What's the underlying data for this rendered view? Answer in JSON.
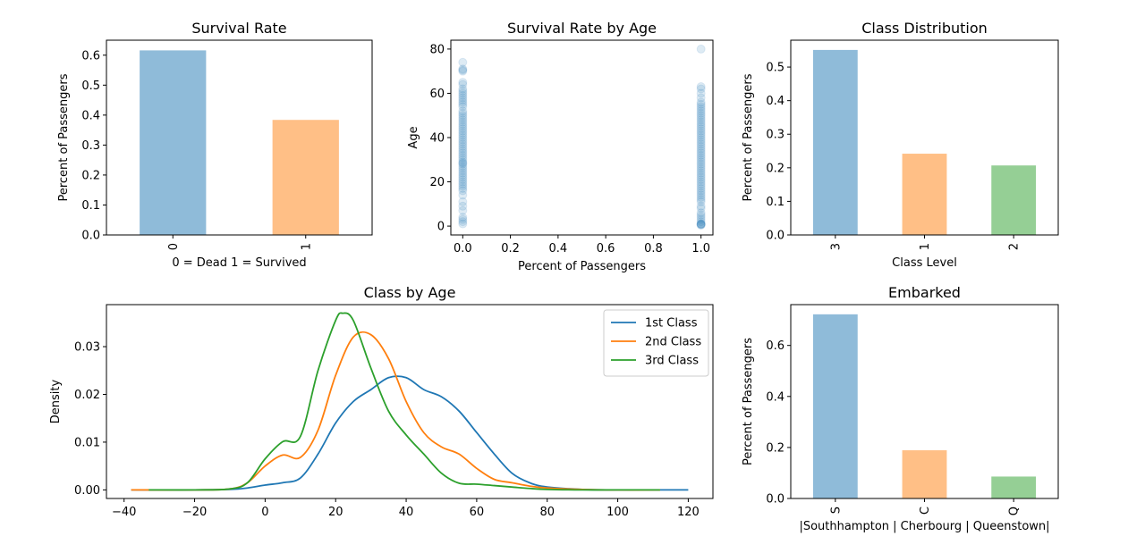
{
  "chart_data": [
    {
      "id": "survival",
      "type": "bar",
      "title": "Survival Rate",
      "xlabel": "0 = Dead  1 = Survived",
      "ylabel": "Percent of Passengers",
      "categories": [
        "0",
        "1"
      ],
      "values": [
        0.616,
        0.384
      ],
      "colors": [
        "#8fbbd9",
        "#ffbf86"
      ],
      "ylim": [
        0,
        0.65
      ],
      "yticks": [
        0.0,
        0.1,
        0.2,
        0.3,
        0.4,
        0.5,
        0.6
      ],
      "ytick_labels": [
        "0.0",
        "0.1",
        "0.2",
        "0.3",
        "0.4",
        "0.5",
        "0.6"
      ],
      "category_labels_rotated": true
    },
    {
      "id": "survival_age",
      "type": "scatter",
      "title": "Survival Rate by Age",
      "xlabel": "Percent of Passengers",
      "ylabel": "Age",
      "xlim": [
        -0.05,
        1.05
      ],
      "ylim": [
        -4,
        84
      ],
      "xticks": [
        0.0,
        0.2,
        0.4,
        0.6,
        0.8,
        1.0
      ],
      "xtick_labels": [
        "0.0",
        "0.2",
        "0.4",
        "0.6",
        "0.8",
        "1.0"
      ],
      "yticks": [
        0,
        20,
        40,
        60,
        80
      ],
      "ytick_labels": [
        "0",
        "20",
        "40",
        "60",
        "80"
      ],
      "color": "#1f77b4",
      "alpha": 0.15,
      "points": {
        "dead_ages": [
          1,
          2,
          3,
          4,
          7,
          9,
          11,
          14,
          16,
          17,
          18,
          19,
          20,
          21,
          22,
          23,
          24,
          25,
          26,
          27,
          28,
          28.5,
          29,
          30,
          31,
          32,
          33,
          34,
          35,
          36,
          37,
          38,
          39,
          40,
          41,
          42,
          43,
          44,
          45,
          46,
          47,
          48,
          49,
          50,
          51,
          52,
          54,
          55,
          56,
          57,
          58,
          59,
          60,
          61,
          62,
          64,
          65,
          70,
          70.5,
          71,
          74
        ],
        "survived_ages": [
          0.42,
          0.67,
          0.83,
          0.92,
          1,
          2,
          3,
          4,
          5,
          6,
          8,
          9,
          11,
          12,
          13,
          14,
          15,
          16,
          17,
          18,
          19,
          20,
          21,
          22,
          23,
          24,
          25,
          26,
          27,
          28,
          29,
          30,
          31,
          32,
          33,
          34,
          35,
          36,
          37,
          38,
          39,
          40,
          41,
          42,
          43,
          44,
          45,
          46,
          47,
          48,
          49,
          50,
          51,
          52,
          53,
          54,
          55,
          56,
          58,
          60,
          62,
          63,
          80
        ]
      }
    },
    {
      "id": "class_dist",
      "type": "bar",
      "title": "Class Distribution",
      "xlabel": "Class Level",
      "ylabel": "Percent of Passengers",
      "categories": [
        "3",
        "1",
        "2"
      ],
      "values": [
        0.551,
        0.242,
        0.207
      ],
      "colors": [
        "#8fbbd9",
        "#ffbf86",
        "#95cf95"
      ],
      "ylim": [
        0,
        0.58
      ],
      "yticks": [
        0.0,
        0.1,
        0.2,
        0.3,
        0.4,
        0.5
      ],
      "ytick_labels": [
        "0.0",
        "0.1",
        "0.2",
        "0.3",
        "0.4",
        "0.5"
      ],
      "category_labels_rotated": true
    },
    {
      "id": "class_age",
      "type": "line",
      "title": "Class by Age",
      "xlabel": "",
      "ylabel": "Density",
      "xlim": [
        -45,
        127
      ],
      "ylim": [
        -0.0018,
        0.0388
      ],
      "xticks": [
        -40,
        -20,
        0,
        20,
        40,
        60,
        80,
        100,
        120
      ],
      "xtick_labels": [
        "−40",
        "−20",
        "0",
        "20",
        "40",
        "60",
        "80",
        "100",
        "120"
      ],
      "yticks": [
        0.0,
        0.01,
        0.02,
        0.03
      ],
      "ytick_labels": [
        "0.00",
        "0.01",
        "0.02",
        "0.03"
      ],
      "legend_position": "upper-right",
      "series": [
        {
          "name": "1st Class",
          "color": "#1f77b4",
          "x": [
            -38,
            -20,
            -10,
            -5,
            0,
            5,
            10,
            15,
            20,
            25,
            30,
            35,
            40,
            45,
            50,
            55,
            60,
            65,
            70,
            75,
            80,
            90,
            100,
            110,
            120
          ],
          "y": [
            0.0,
            0.0,
            0.0001,
            0.0004,
            0.001,
            0.0015,
            0.0025,
            0.0075,
            0.014,
            0.0185,
            0.021,
            0.0235,
            0.0235,
            0.021,
            0.0195,
            0.0165,
            0.012,
            0.0075,
            0.0035,
            0.0015,
            0.0006,
            0.0001,
            0.0,
            0.0,
            0.0
          ]
        },
        {
          "name": "2nd Class",
          "color": "#ff7f0e",
          "x": [
            -38,
            -20,
            -10,
            -5,
            0,
            5,
            10,
            15,
            20,
            25,
            30,
            35,
            40,
            45,
            50,
            55,
            60,
            65,
            70,
            75,
            80,
            90,
            100,
            112
          ],
          "y": [
            0.0,
            0.0,
            0.0002,
            0.0015,
            0.005,
            0.0073,
            0.0068,
            0.0125,
            0.024,
            0.032,
            0.0325,
            0.0275,
            0.0185,
            0.012,
            0.009,
            0.0075,
            0.0045,
            0.0022,
            0.0015,
            0.0008,
            0.0004,
            0.0001,
            0.0,
            0.0
          ]
        },
        {
          "name": "3rd Class",
          "color": "#2ca02c",
          "x": [
            -33,
            -20,
            -10,
            -5,
            0,
            5,
            10,
            15,
            20,
            22,
            25,
            30,
            35,
            40,
            45,
            50,
            55,
            60,
            65,
            70,
            75,
            80,
            90,
            100,
            112
          ],
          "y": [
            0.0,
            0.0,
            0.0002,
            0.0015,
            0.0065,
            0.0101,
            0.0112,
            0.025,
            0.0355,
            0.037,
            0.0355,
            0.0255,
            0.0165,
            0.0115,
            0.0075,
            0.0035,
            0.0014,
            0.0012,
            0.0009,
            0.0006,
            0.0003,
            0.0001,
            0.0,
            0.0,
            0.0
          ]
        }
      ]
    },
    {
      "id": "embarked",
      "type": "bar",
      "title": "Embarked",
      "xlabel": "|Southhampton | Cherbourg | Queenstown|",
      "ylabel": "Percent of Passengers",
      "categories": [
        "S",
        "C",
        "Q"
      ],
      "values": [
        0.722,
        0.189,
        0.086
      ],
      "colors": [
        "#8fbbd9",
        "#ffbf86",
        "#95cf95"
      ],
      "ylim": [
        0,
        0.76
      ],
      "yticks": [
        0.0,
        0.2,
        0.4,
        0.6
      ],
      "ytick_labels": [
        "0.0",
        "0.2",
        "0.4",
        "0.6"
      ],
      "category_labels_rotated": true
    }
  ]
}
